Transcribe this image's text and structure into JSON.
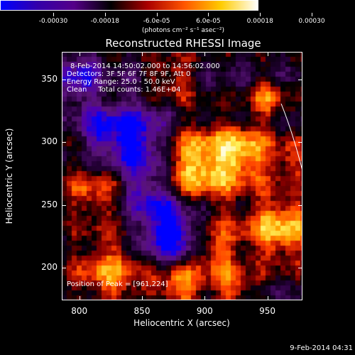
{
  "colorbar": {
    "labels": [
      "-0.00030",
      "-0.00018",
      "-6.0e-05",
      "6.0e-05",
      "0.00018",
      "0.00030"
    ],
    "units": "(photons cm⁻² s⁻¹ asec⁻²)",
    "colors": [
      "#0000ff",
      "#3300aa",
      "#550088",
      "#000000",
      "#aa0000",
      "#ff5500",
      "#ffcc00",
      "#ffffff"
    ]
  },
  "title": "Reconstructed RHESSI Image",
  "info": {
    "line1": "8-Feb-2014 14:50:02.000 to 14:56:02.000",
    "line2": "Detectors: 3F 5F 6F 7F 8F 9F, Att 0",
    "line3": "Energy Range: 25.0 - 50.0 keV",
    "line4": "Clean     Total counts: 1.46E+04",
    "peak": "Position of Peak = [961,224]"
  },
  "axes": {
    "xlabel": "Heliocentric X (arcsec)",
    "ylabel": "Heliocentric Y (arcsec)",
    "xticks": [
      "800",
      "850",
      "900",
      "950"
    ],
    "yticks": [
      "350",
      "300",
      "250",
      "200"
    ],
    "xlim": [
      786,
      978
    ],
    "ylim": [
      174,
      372
    ]
  },
  "footer": "9-Feb-2014 04:31"
}
